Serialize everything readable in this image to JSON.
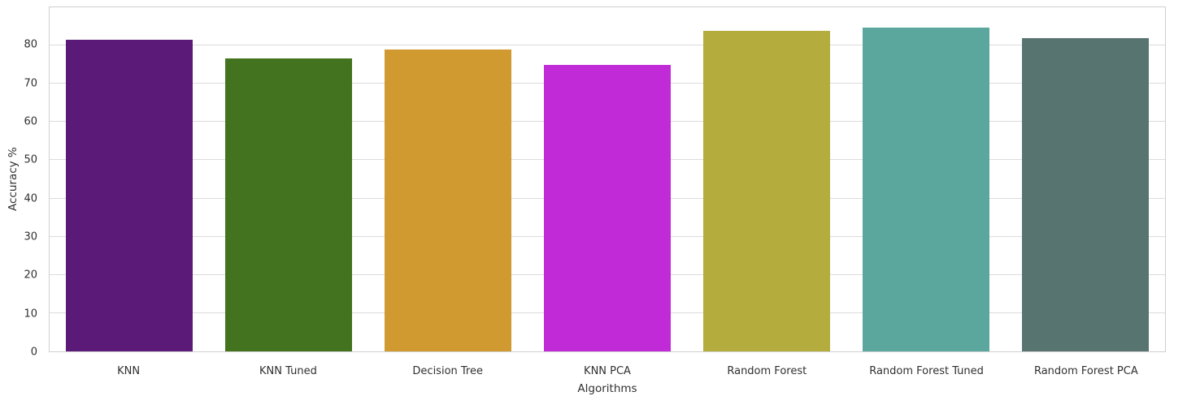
{
  "chart_data": {
    "type": "bar",
    "title": "",
    "xlabel": "Algorithms",
    "ylabel": "Accuracy %",
    "categories": [
      "KNN",
      "KNN Tuned",
      "Decision Tree",
      "KNN PCA",
      "Random Forest",
      "Random Forest Tuned",
      "Random Forest PCA"
    ],
    "values": [
      81.5,
      76.7,
      78.9,
      74.9,
      83.8,
      84.6,
      81.9
    ],
    "bar_colors": [
      "#5c1a78",
      "#44731f",
      "#d09a30",
      "#c12ad7",
      "#b4ad3e",
      "#5ba79d",
      "#587471"
    ],
    "ylim": [
      0,
      90
    ],
    "yticks": [
      0,
      10,
      20,
      30,
      40,
      50,
      60,
      70,
      80
    ],
    "grid": true,
    "grid_color": "#dcdcdc",
    "legend": "none",
    "bar_width_fraction": 0.8,
    "axis_text_color": "#303030",
    "spine_color": "#d0d0d0",
    "background_color": "#ffffff"
  }
}
